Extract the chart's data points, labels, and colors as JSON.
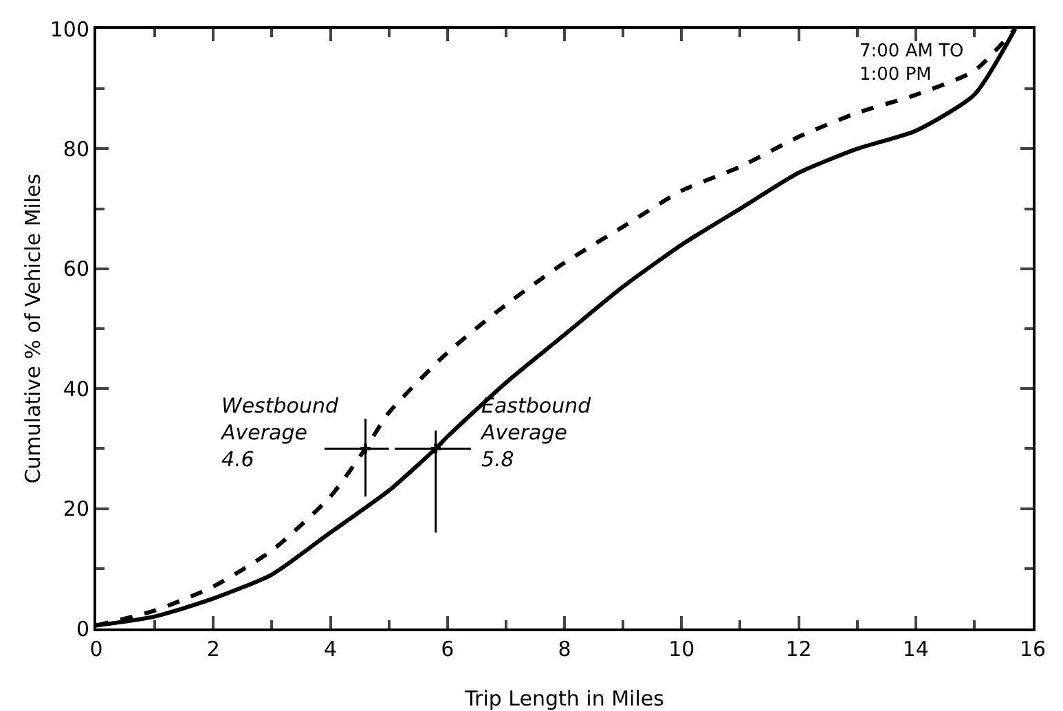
{
  "chart_data": {
    "type": "line",
    "xlabel": "Trip Length in Miles",
    "ylabel": "Cumulative % of Vehicle Miles",
    "xlim": [
      0,
      16
    ],
    "xticks": [
      0,
      2,
      4,
      6,
      8,
      10,
      12,
      14,
      16
    ],
    "ylim": [
      0,
      100
    ],
    "yticks": [
      0,
      20,
      40,
      60,
      80,
      100
    ],
    "grid": false,
    "marker": "none",
    "series": [
      {
        "color": "#000000",
        "line_style": "solid",
        "x": [
          0,
          1,
          2,
          3,
          4,
          5,
          5.8,
          6,
          7,
          8,
          9,
          10,
          11,
          12,
          13,
          14,
          15,
          15.7
        ],
        "values": [
          0.5,
          2,
          5,
          9,
          16,
          23,
          30,
          32,
          41,
          49,
          57,
          64,
          70,
          76,
          80,
          83,
          89,
          100
        ]
      },
      {
        "color": "#000000",
        "line_style": "dashed",
        "x": [
          0,
          1,
          2,
          3,
          4,
          4.6,
          5,
          6,
          7,
          8,
          9,
          10,
          11,
          12,
          13,
          14,
          15,
          15.7
        ],
        "values": [
          0.5,
          3,
          7,
          13,
          22,
          30,
          36,
          46,
          54,
          61,
          67,
          73,
          77,
          82,
          86,
          89,
          93,
          100
        ]
      },
      {
        "type": "scatter",
        "marker": "cross",
        "color": "#000000",
        "x": [
          4.6,
          5.8
        ],
        "values": [
          30,
          30
        ],
        "errors": [
          [
            22,
            35
          ],
          [
            16,
            33
          ]
        ],
        "xerrors": [
          [
            3.9,
            5.0
          ],
          [
            5.1,
            6.4
          ]
        ]
      }
    ],
    "annotations": [
      {
        "text": "Westbound\nAverage\n4.6",
        "x": 4.6,
        "y": 30
      },
      {
        "text": "Eastbound\nAverage\n5.8",
        "x": 5.8,
        "y": 30
      },
      "7:00 AM TO\n1:00 PM"
    ]
  }
}
